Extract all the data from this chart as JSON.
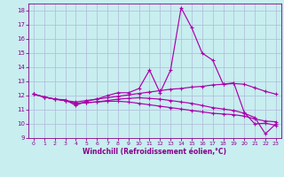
{
  "background_color": "#c8eef0",
  "grid_color": "#b0b8d8",
  "line_color": "#aa00aa",
  "xlabel": "Windchill (Refroidissement éolien,°C)",
  "xlabel_color": "#880088",
  "tick_color": "#880088",
  "xlim": [
    -0.5,
    23.5
  ],
  "ylim": [
    9,
    18.5
  ],
  "yticks": [
    9,
    10,
    11,
    12,
    13,
    14,
    15,
    16,
    17,
    18
  ],
  "xticks": [
    0,
    1,
    2,
    3,
    4,
    5,
    6,
    7,
    8,
    9,
    10,
    11,
    12,
    13,
    14,
    15,
    16,
    17,
    18,
    19,
    20,
    21,
    22,
    23
  ],
  "line1_x": [
    0,
    1,
    2,
    3,
    4,
    5,
    6,
    7,
    8,
    9,
    10,
    11,
    12,
    13,
    14,
    15,
    16,
    17,
    18,
    19,
    20,
    21,
    22,
    23
  ],
  "line1_y": [
    12.1,
    11.9,
    11.75,
    11.7,
    11.3,
    11.6,
    11.75,
    12.0,
    12.2,
    12.2,
    12.5,
    13.8,
    12.2,
    13.8,
    18.2,
    16.8,
    15.0,
    14.5,
    12.8,
    12.9,
    10.8,
    10.0,
    10.05,
    9.9
  ],
  "line2_x": [
    0,
    1,
    2,
    3,
    4,
    5,
    6,
    7,
    8,
    9,
    10,
    11,
    12,
    13,
    14,
    15,
    16,
    17,
    18,
    19,
    20,
    21,
    22,
    23
  ],
  "line2_y": [
    12.1,
    11.9,
    11.75,
    11.65,
    11.55,
    11.65,
    11.75,
    11.85,
    11.95,
    12.05,
    12.15,
    12.25,
    12.35,
    12.45,
    12.5,
    12.6,
    12.65,
    12.75,
    12.8,
    12.85,
    12.8,
    12.55,
    12.3,
    12.1
  ],
  "line3_x": [
    0,
    1,
    2,
    3,
    4,
    5,
    6,
    7,
    8,
    9,
    10,
    11,
    12,
    13,
    14,
    15,
    16,
    17,
    18,
    19,
    20,
    21,
    22,
    23
  ],
  "line3_y": [
    12.1,
    11.9,
    11.75,
    11.65,
    11.45,
    11.5,
    11.55,
    11.6,
    11.6,
    11.55,
    11.45,
    11.35,
    11.25,
    11.15,
    11.05,
    10.95,
    10.85,
    10.75,
    10.7,
    10.65,
    10.55,
    10.35,
    10.2,
    10.15
  ],
  "line4_x": [
    0,
    1,
    2,
    3,
    4,
    5,
    6,
    7,
    8,
    9,
    10,
    11,
    12,
    13,
    14,
    15,
    16,
    17,
    18,
    19,
    20,
    21,
    22,
    23
  ],
  "line4_y": [
    12.1,
    11.9,
    11.75,
    11.65,
    11.45,
    11.5,
    11.55,
    11.65,
    11.75,
    11.8,
    11.85,
    11.8,
    11.75,
    11.65,
    11.55,
    11.45,
    11.3,
    11.15,
    11.05,
    10.95,
    10.75,
    10.45,
    9.3,
    10.0
  ]
}
